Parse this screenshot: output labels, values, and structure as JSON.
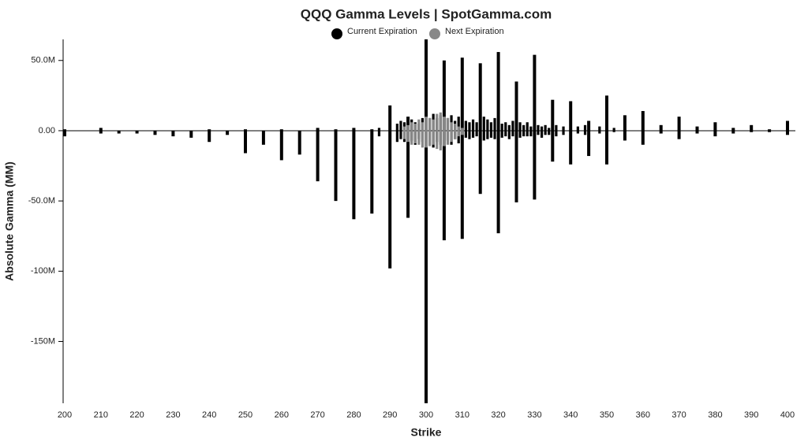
{
  "chart_data": {
    "type": "bar",
    "title": "QQQ Gamma Levels | SpotGamma.com",
    "x_label": "Strike",
    "y_label": "Absolute Gamma (MM)",
    "xlim": [
      200,
      400
    ],
    "xticks": [
      200,
      210,
      220,
      230,
      240,
      250,
      260,
      270,
      280,
      290,
      300,
      310,
      320,
      330,
      340,
      350,
      360,
      370,
      380,
      390,
      400
    ],
    "ylim": [
      -194,
      65
    ],
    "yticks": [
      {
        "value": 50,
        "label": "50.0M"
      },
      {
        "value": 0,
        "label": "0.00"
      },
      {
        "value": -50,
        "label": "-50.0M"
      },
      {
        "value": -100,
        "label": "-100M"
      },
      {
        "value": -150,
        "label": "-150M"
      }
    ],
    "series": [
      {
        "name": "Current Expiration",
        "color": "#000000",
        "x": [
          200,
          200,
          210,
          210,
          215,
          220,
          225,
          230,
          235,
          240,
          240,
          245,
          250,
          250,
          255,
          260,
          260,
          265,
          270,
          270,
          275,
          275,
          280,
          280,
          285,
          285,
          287,
          287,
          290,
          290,
          292,
          292,
          293,
          293,
          294,
          294,
          295,
          295,
          296,
          296,
          297,
          297,
          298,
          298,
          299,
          299,
          300,
          300,
          301,
          301,
          302,
          302,
          303,
          303,
          304,
          304,
          305,
          305,
          306,
          306,
          307,
          307,
          308,
          308,
          309,
          309,
          310,
          310,
          311,
          311,
          312,
          312,
          313,
          313,
          314,
          314,
          315,
          315,
          316,
          316,
          317,
          317,
          318,
          318,
          319,
          319,
          320,
          320,
          321,
          321,
          322,
          322,
          323,
          323,
          324,
          324,
          325,
          325,
          326,
          326,
          327,
          327,
          328,
          328,
          329,
          329,
          330,
          330,
          331,
          331,
          332,
          332,
          333,
          333,
          334,
          334,
          335,
          335,
          336,
          336,
          338,
          338,
          340,
          340,
          342,
          342,
          344,
          344,
          345,
          345,
          348,
          348,
          350,
          350,
          352,
          352,
          355,
          355,
          360,
          360,
          365,
          365,
          370,
          370,
          375,
          375,
          380,
          380,
          385,
          385,
          390,
          390,
          395,
          395,
          400,
          400
        ],
        "values": [
          1,
          -4,
          2,
          -2,
          -2,
          -2,
          -3,
          -4,
          -5,
          1,
          -8,
          -3,
          1,
          -16,
          -10,
          1,
          -21,
          -17,
          2,
          -36,
          1,
          -50,
          2,
          -63,
          1,
          -59,
          2,
          -4,
          18,
          -98,
          5,
          -8,
          7,
          -6,
          6,
          -8,
          10,
          -62,
          8,
          -7,
          6,
          -10,
          5,
          -6,
          9,
          -8,
          65,
          -194,
          9,
          -10,
          12,
          -12,
          9,
          -8,
          11,
          -10,
          50,
          -78,
          9,
          -7,
          11,
          -10,
          7,
          -6,
          10,
          -9,
          52,
          -77,
          7,
          -5,
          6,
          -6,
          8,
          -5,
          6,
          -4,
          48,
          -45,
          10,
          -7,
          8,
          -6,
          6,
          -5,
          9,
          -6,
          56,
          -73,
          5,
          -5,
          6,
          -4,
          4,
          -6,
          7,
          -4,
          35,
          -51,
          6,
          -5,
          4,
          -4,
          6,
          -4,
          3,
          -4,
          54,
          -49,
          4,
          -3,
          3,
          -5,
          4,
          -3,
          2,
          -3,
          22,
          -22,
          4,
          -4,
          3,
          -3,
          21,
          -24,
          3,
          -2,
          4,
          -3,
          7,
          -18,
          3,
          -2,
          25,
          -24,
          2,
          -1,
          11,
          -7,
          14,
          -10,
          4,
          -2,
          10,
          -6,
          3,
          -2,
          6,
          -4,
          2,
          -2,
          4,
          -1,
          1,
          -1,
          7,
          -3
        ]
      },
      {
        "name": "Next Expiration",
        "color": "#888888",
        "x": [
          294,
          294,
          295,
          295,
          296,
          296,
          297,
          297,
          298,
          298,
          299,
          299,
          300,
          300,
          301,
          301,
          302,
          302,
          303,
          303,
          304,
          304,
          305,
          305,
          306,
          306,
          307,
          307,
          308,
          308,
          309,
          309,
          310,
          310
        ],
        "values": [
          3,
          -6,
          4,
          -8,
          6,
          -10,
          5,
          -9,
          8,
          -10,
          6,
          -12,
          10,
          -12,
          9,
          -11,
          8,
          -10,
          12,
          -13,
          13,
          -14,
          10,
          -11,
          9,
          -10,
          6,
          -8,
          5,
          -6,
          3,
          -4,
          2,
          -3
        ]
      }
    ]
  }
}
